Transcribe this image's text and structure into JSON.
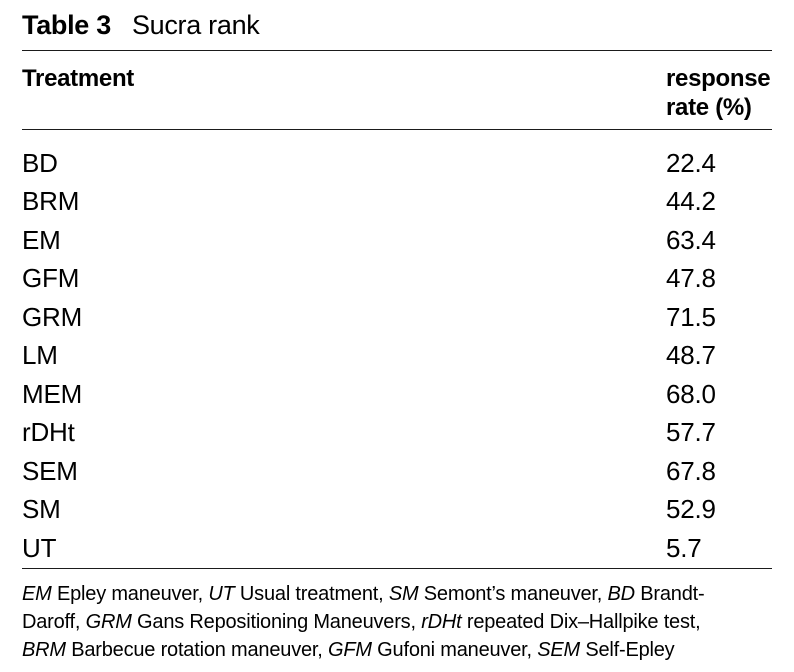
{
  "page": {
    "background": "#ffffff",
    "text_color": "#000000",
    "rule_color": "#1b1b1b"
  },
  "title": {
    "label": "Table 3",
    "caption": "Sucra rank"
  },
  "table": {
    "columns": [
      {
        "key": "treatment",
        "label": "Treatment"
      },
      {
        "key": "response_rate",
        "label": "response rate (%)"
      }
    ],
    "rows": [
      {
        "treatment": "BD",
        "response_rate": "22.4"
      },
      {
        "treatment": "BRM",
        "response_rate": "44.2"
      },
      {
        "treatment": "EM",
        "response_rate": "63.4"
      },
      {
        "treatment": "GFM",
        "response_rate": "47.8"
      },
      {
        "treatment": "GRM",
        "response_rate": "71.5"
      },
      {
        "treatment": "LM",
        "response_rate": "48.7"
      },
      {
        "treatment": "MEM",
        "response_rate": "68.0"
      },
      {
        "treatment": "rDHt",
        "response_rate": "57.7"
      },
      {
        "treatment": "SEM",
        "response_rate": "67.8"
      },
      {
        "treatment": "SM",
        "response_rate": "52.9"
      },
      {
        "treatment": "UT",
        "response_rate": "5.7"
      }
    ]
  },
  "footnote": {
    "lines": [
      {
        "segments": [
          {
            "text": "EM",
            "italic": true
          },
          {
            "text": " Epley maneuver, ",
            "italic": false
          },
          {
            "text": "UT",
            "italic": true
          },
          {
            "text": " Usual treatment, ",
            "italic": false
          },
          {
            "text": "SM",
            "italic": true
          },
          {
            "text": " Semont’s maneuver, ",
            "italic": false
          },
          {
            "text": "BD",
            "italic": true
          },
          {
            "text": " Brandt-",
            "italic": false
          }
        ]
      },
      {
        "segments": [
          {
            "text": "Daroff, ",
            "italic": false
          },
          {
            "text": "GRM",
            "italic": true
          },
          {
            "text": " Gans Repositioning Maneuvers, ",
            "italic": false
          },
          {
            "text": "rDHt",
            "italic": true
          },
          {
            "text": " repeated Dix–Hallpike test,",
            "italic": false
          }
        ]
      },
      {
        "segments": [
          {
            "text": "BRM",
            "italic": true
          },
          {
            "text": " Barbecue rotation maneuver, ",
            "italic": false
          },
          {
            "text": "GFM",
            "italic": true
          },
          {
            "text": " Gufoni maneuver, ",
            "italic": false
          },
          {
            "text": "SEM",
            "italic": true
          },
          {
            "text": " Self-Epley",
            "italic": false
          }
        ]
      }
    ]
  }
}
